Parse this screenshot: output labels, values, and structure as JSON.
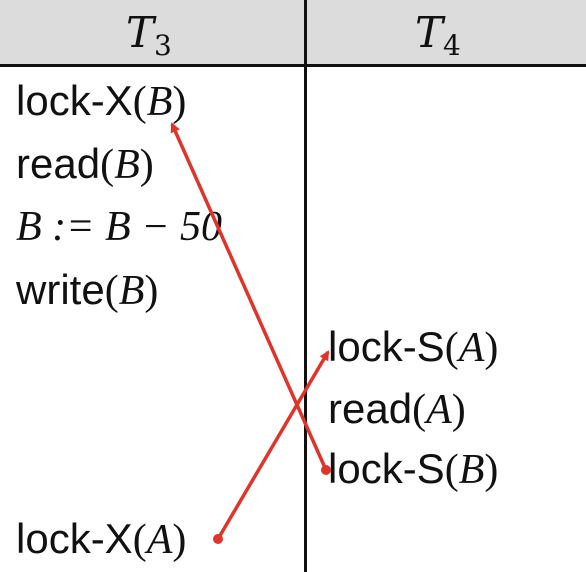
{
  "columns": [
    {
      "name": "T",
      "subscript": "3"
    },
    {
      "name": "T",
      "subscript": "4"
    }
  ],
  "t3_ops": [
    {
      "name": "lock-X",
      "open": "(",
      "arg": "B",
      "close": ")"
    },
    {
      "name": "read",
      "open": "(",
      "arg": "B",
      "close": ")"
    },
    {
      "expr": "B := B − 50"
    },
    {
      "name": "write",
      "open": "(",
      "arg": "B",
      "close": ")"
    },
    {
      "name": "lock-X",
      "open": "(",
      "arg": "A",
      "close": ")"
    }
  ],
  "t4_ops": [
    {
      "name": "lock-S",
      "open": "(",
      "arg": "A",
      "close": ")"
    },
    {
      "name": "read",
      "open": "(",
      "arg": "A",
      "close": ")"
    },
    {
      "name": "lock-S",
      "open": "(",
      "arg": "B",
      "close": ")"
    }
  ],
  "arrows": [
    {
      "from": "t4-lock-S-B",
      "to": "t3-lock-X-B",
      "meaning": "waits-for"
    },
    {
      "from": "t3-lock-X-A",
      "to": "t4-lock-S-A",
      "meaning": "waits-for"
    }
  ],
  "colors": {
    "arrow": "#e0342a",
    "text": "#111111",
    "header_bg": "#dcdcdc"
  }
}
